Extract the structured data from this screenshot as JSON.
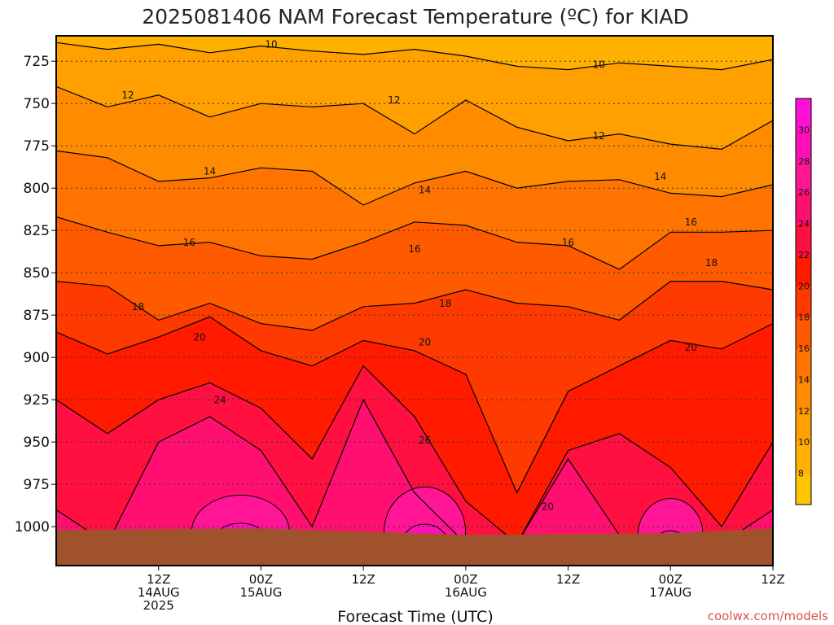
{
  "title": "2025081406 NAM Forecast Temperature (ºC) for KIAD",
  "credit": "coolwx.com/models",
  "colors": {
    "ground": "#a0522d",
    "plot_border": "#000000",
    "contour_line": "#000000",
    "grid": "#333333"
  },
  "chart_data": {
    "type": "heatmap",
    "xlabel": "Forecast Time (UTC)",
    "ylabel": "",
    "x_range_hours": [
      -4,
      66
    ],
    "y_range_hpa": [
      1023,
      710
    ],
    "y_axis_inverted": true,
    "grid": "dotted horizontal lines at each pressure tick",
    "y_ticks": [
      725,
      750,
      775,
      800,
      825,
      850,
      875,
      900,
      925,
      950,
      975,
      1000
    ],
    "x_ticks": [
      {
        "hour": 6,
        "lines": [
          "12Z",
          "14AUG",
          "2025"
        ]
      },
      {
        "hour": 16,
        "lines": [
          "00Z",
          "15AUG"
        ]
      },
      {
        "hour": 26,
        "lines": [
          "12Z"
        ]
      },
      {
        "hour": 36,
        "lines": [
          "00Z",
          "16AUG"
        ]
      },
      {
        "hour": 46,
        "lines": [
          "12Z"
        ]
      },
      {
        "hour": 56,
        "lines": [
          "00Z",
          "17AUG"
        ]
      },
      {
        "hour": 66,
        "lines": [
          "12Z"
        ]
      }
    ],
    "colorbar": {
      "levels": [
        6,
        8,
        10,
        12,
        14,
        16,
        18,
        20,
        22,
        24,
        26,
        28,
        30,
        32
      ],
      "colors": [
        "#ffc400",
        "#ffb000",
        "#ff9f00",
        "#ff8c00",
        "#ff7400",
        "#ff5a00",
        "#ff3a00",
        "#ff1a00",
        "#ff1040",
        "#ff1070",
        "#ff1595",
        "#ff10b5",
        "#ff10d5"
      ],
      "labels": [
        8,
        10,
        12,
        14,
        16,
        18,
        20,
        22,
        24,
        26,
        28,
        30
      ]
    },
    "contour_labels": [
      {
        "text": "10",
        "hour": 17,
        "hpa": 717
      },
      {
        "text": "10",
        "hour": 49,
        "hpa": 729
      },
      {
        "text": "12",
        "hour": 3,
        "hpa": 747
      },
      {
        "text": "12",
        "hour": 29,
        "hpa": 750
      },
      {
        "text": "12",
        "hour": 49,
        "hpa": 771
      },
      {
        "text": "14",
        "hour": 11,
        "hpa": 792
      },
      {
        "text": "14",
        "hour": 32,
        "hpa": 803
      },
      {
        "text": "14",
        "hour": 55,
        "hpa": 795
      },
      {
        "text": "16",
        "hour": 9,
        "hpa": 834
      },
      {
        "text": "16",
        "hour": 31,
        "hpa": 838
      },
      {
        "text": "16",
        "hour": 46,
        "hpa": 834
      },
      {
        "text": "16",
        "hour": 58,
        "hpa": 822
      },
      {
        "text": "18",
        "hour": 4,
        "hpa": 872
      },
      {
        "text": "18",
        "hour": 34,
        "hpa": 870
      },
      {
        "text": "18",
        "hour": 60,
        "hpa": 846
      },
      {
        "text": "20",
        "hour": 10,
        "hpa": 890
      },
      {
        "text": "20",
        "hour": 32,
        "hpa": 893
      },
      {
        "text": "20",
        "hour": 58,
        "hpa": 896
      },
      {
        "text": "20",
        "hour": 44,
        "hpa": 990
      },
      {
        "text": "24",
        "hour": 12,
        "hpa": 927
      },
      {
        "text": "26",
        "hour": 32,
        "hpa": 951
      }
    ],
    "isotherms": [
      {
        "value": 10,
        "hpa": [
          714,
          718,
          715,
          720,
          716,
          719,
          721,
          718,
          722,
          728,
          730,
          726,
          728,
          730,
          724
        ]
      },
      {
        "value": 12,
        "hpa": [
          740,
          752,
          745,
          758,
          750,
          752,
          750,
          768,
          748,
          764,
          772,
          768,
          774,
          777,
          760
        ]
      },
      {
        "value": 14,
        "hpa": [
          778,
          782,
          796,
          794,
          788,
          790,
          810,
          797,
          790,
          800,
          796,
          795,
          803,
          805,
          798
        ]
      },
      {
        "value": 16,
        "hpa": [
          817,
          826,
          834,
          832,
          840,
          842,
          832,
          820,
          822,
          832,
          834,
          848,
          826,
          826,
          825
        ]
      },
      {
        "value": 18,
        "hpa": [
          855,
          858,
          878,
          868,
          880,
          884,
          870,
          868,
          860,
          868,
          870,
          878,
          855,
          855,
          860
        ]
      },
      {
        "value": 20,
        "hpa": [
          885,
          898,
          888,
          876,
          896,
          905,
          890,
          896,
          910,
          980,
          920,
          905,
          890,
          895,
          880
        ]
      },
      {
        "value": 22,
        "hpa": [
          925,
          945,
          925,
          915,
          930,
          960,
          905,
          935,
          985,
          1010,
          955,
          945,
          965,
          1000,
          950
        ]
      },
      {
        "value": 24,
        "hpa": [
          990,
          1010,
          950,
          935,
          955,
          1000,
          925,
          980,
          1010,
          1010,
          960,
          1005,
          1010,
          1010,
          990
        ]
      }
    ]
  }
}
